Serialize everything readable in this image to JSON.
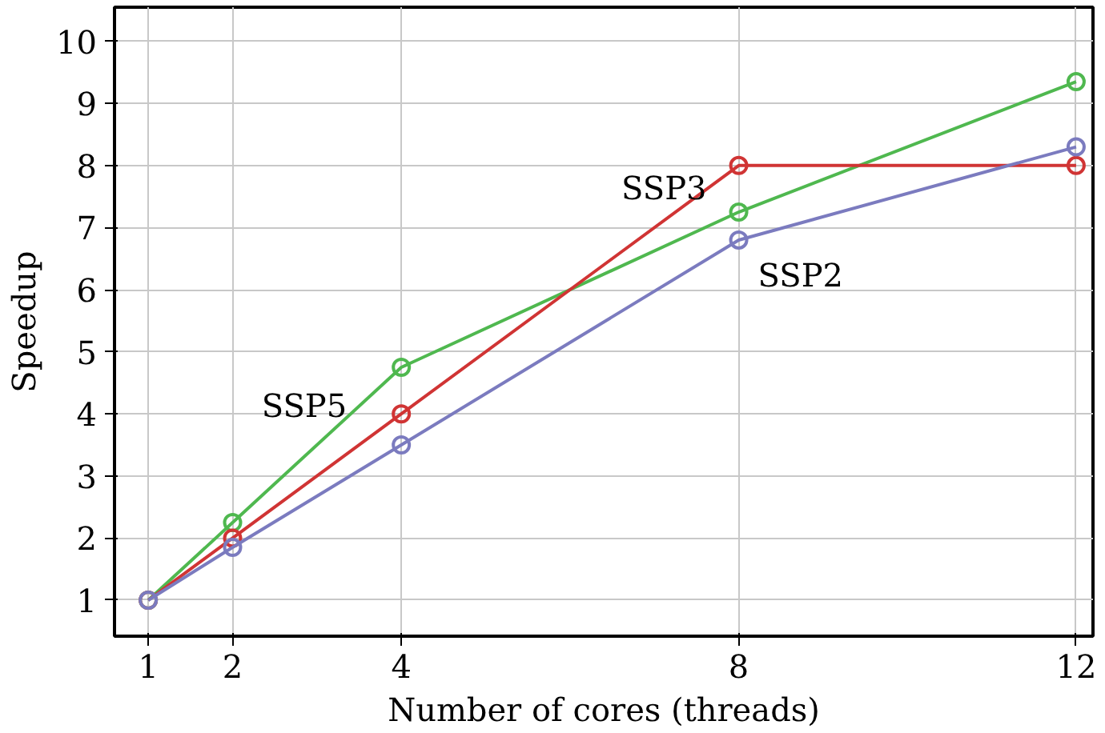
{
  "chart_data": {
    "type": "line",
    "xlabel": "Number of cores (threads)",
    "ylabel": "Speedup",
    "x": [
      1,
      2,
      4,
      8,
      12
    ],
    "series": [
      {
        "name": "SSP5",
        "color": "#4fb84f",
        "values": [
          1,
          2.25,
          4.75,
          7.25,
          9.35
        ]
      },
      {
        "name": "SSP3",
        "color": "#d03434",
        "values": [
          1,
          2,
          4,
          8,
          8
        ]
      },
      {
        "name": "SSP2",
        "color": "#7b7bbf",
        "values": [
          1,
          1.85,
          3.5,
          6.8,
          8.3
        ]
      }
    ],
    "xlim": [
      0.6,
      12.2
    ],
    "ylim": [
      0.42,
      10.55
    ],
    "xticks": [
      1,
      2,
      4,
      8,
      12
    ],
    "yticks": [
      1,
      2,
      3,
      4,
      5,
      6,
      7,
      8,
      9,
      10
    ],
    "grid": true,
    "marker": "circle",
    "line_style": "solid"
  }
}
